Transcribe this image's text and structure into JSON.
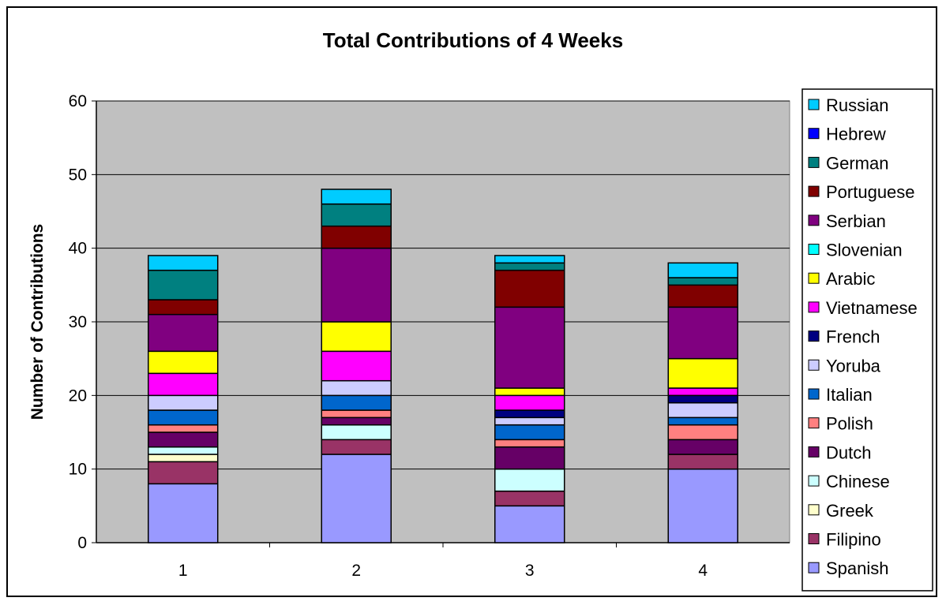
{
  "chart_data": {
    "type": "bar",
    "stacked": true,
    "title": "Total Contributions of 4 Weeks",
    "xlabel": "",
    "ylabel": "Number of Contributions",
    "categories": [
      "1",
      "2",
      "3",
      "4"
    ],
    "ylim": [
      0,
      60
    ],
    "yticks": [
      0,
      10,
      20,
      30,
      40,
      50,
      60
    ],
    "grid": true,
    "legend_position": "right",
    "plot_background": "#c0c0c0",
    "series": [
      {
        "name": "Spanish",
        "color": "#9999ff",
        "values": [
          8,
          12,
          5,
          10
        ]
      },
      {
        "name": "Filipino",
        "color": "#993366",
        "values": [
          3,
          2,
          2,
          2
        ]
      },
      {
        "name": "Greek",
        "color": "#ffffcc",
        "values": [
          1,
          0,
          0,
          0
        ]
      },
      {
        "name": "Chinese",
        "color": "#ccffff",
        "values": [
          1,
          2,
          3,
          0
        ]
      },
      {
        "name": "Dutch",
        "color": "#660066",
        "values": [
          2,
          1,
          3,
          2
        ]
      },
      {
        "name": "Polish",
        "color": "#ff8080",
        "values": [
          1,
          1,
          1,
          2
        ]
      },
      {
        "name": "Italian",
        "color": "#0066cc",
        "values": [
          2,
          2,
          2,
          1
        ]
      },
      {
        "name": "Yoruba",
        "color": "#ccccff",
        "values": [
          2,
          2,
          1,
          2
        ]
      },
      {
        "name": "French",
        "color": "#000080",
        "values": [
          0,
          0,
          1,
          1
        ]
      },
      {
        "name": "Vietnamese",
        "color": "#ff00ff",
        "values": [
          3,
          4,
          2,
          1
        ]
      },
      {
        "name": "Arabic",
        "color": "#ffff00",
        "values": [
          3,
          4,
          1,
          4
        ]
      },
      {
        "name": "Slovenian",
        "color": "#00ffff",
        "values": [
          0,
          0,
          0,
          0
        ]
      },
      {
        "name": "Serbian",
        "color": "#800080",
        "values": [
          5,
          10,
          11,
          7
        ]
      },
      {
        "name": "Portuguese",
        "color": "#800000",
        "values": [
          2,
          3,
          5,
          3
        ]
      },
      {
        "name": "German",
        "color": "#008080",
        "values": [
          4,
          3,
          1,
          1
        ]
      },
      {
        "name": "Hebrew",
        "color": "#0000ff",
        "values": [
          0,
          0,
          0,
          0
        ]
      },
      {
        "name": "Russian",
        "color": "#00ccff",
        "values": [
          2,
          2,
          1,
          2
        ]
      }
    ]
  }
}
